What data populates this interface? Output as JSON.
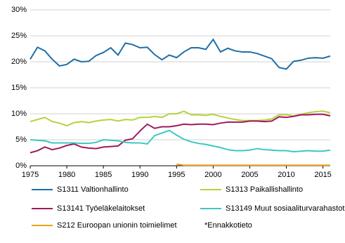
{
  "chart_data": {
    "type": "line",
    "x": [
      1975,
      1976,
      1977,
      1978,
      1979,
      1980,
      1981,
      1982,
      1983,
      1984,
      1985,
      1986,
      1987,
      1988,
      1989,
      1990,
      1991,
      1992,
      1993,
      1994,
      1995,
      1996,
      1997,
      1998,
      1999,
      2000,
      2001,
      2002,
      2003,
      2004,
      2005,
      2006,
      2007,
      2008,
      2009,
      2010,
      2011,
      2012,
      2013,
      2014,
      2015,
      2016
    ],
    "xlim": [
      1975,
      2016
    ],
    "xticks": [
      1975,
      1980,
      1985,
      1990,
      1995,
      2000,
      2005,
      2010,
      2015
    ],
    "ylim": [
      0,
      30
    ],
    "yticks": [
      {
        "value": 0,
        "label": "0%"
      },
      {
        "value": 5,
        "label": "5%"
      },
      {
        "value": 10,
        "label": "10%"
      },
      {
        "value": 15,
        "label": "15%"
      },
      {
        "value": 20,
        "label": "20%"
      },
      {
        "value": 25,
        "label": "25%"
      },
      {
        "value": 30,
        "label": "30%"
      }
    ],
    "grid": true,
    "note": "*Ennakkotieto",
    "series": [
      {
        "name": "S1311 Valtionhallinto",
        "color": "#1f6fa8",
        "values": [
          20.5,
          22.8,
          22.1,
          20.5,
          19.2,
          19.5,
          20.5,
          20.0,
          20.1,
          21.2,
          21.8,
          22.7,
          21.3,
          23.6,
          23.3,
          22.7,
          22.8,
          21.4,
          20.4,
          21.3,
          20.8,
          21.9,
          22.7,
          22.7,
          22.4,
          24.3,
          21.9,
          22.6,
          22.1,
          21.9,
          21.9,
          21.6,
          21.1,
          20.6,
          18.9,
          18.6,
          20.1,
          20.3,
          20.7,
          20.8,
          20.7,
          21.1
        ]
      },
      {
        "name": "S1313 Paikallishallinto",
        "color": "#b5d33d",
        "values": [
          8.5,
          8.9,
          9.3,
          8.5,
          8.2,
          7.7,
          8.3,
          8.5,
          8.3,
          8.6,
          8.8,
          8.9,
          8.6,
          8.9,
          8.8,
          9.3,
          9.3,
          9.5,
          9.3,
          10.0,
          10.0,
          10.5,
          9.8,
          9.8,
          9.7,
          9.9,
          9.5,
          9.2,
          8.9,
          8.7,
          8.7,
          8.7,
          8.8,
          9.0,
          9.8,
          9.8,
          9.6,
          9.9,
          10.2,
          10.4,
          10.5,
          10.2
        ]
      },
      {
        "name": "S13141 Työeläkelaitokset",
        "color": "#a0195f",
        "values": [
          2.5,
          2.9,
          3.6,
          3.1,
          3.4,
          3.9,
          4.2,
          3.6,
          3.4,
          3.3,
          3.6,
          3.7,
          3.8,
          4.9,
          5.2,
          6.7,
          8.0,
          7.2,
          7.5,
          7.5,
          7.7,
          8.0,
          7.9,
          8.0,
          8.0,
          7.9,
          8.2,
          8.4,
          8.4,
          8.4,
          8.6,
          8.6,
          8.5,
          8.6,
          9.4,
          9.3,
          9.5,
          9.8,
          9.8,
          9.9,
          9.9,
          9.6
        ]
      },
      {
        "name": "S13149 Muut sosiaaliturvarahastot",
        "color": "#3cc8c0",
        "values": [
          5.0,
          4.9,
          4.8,
          4.4,
          4.4,
          4.4,
          4.4,
          4.3,
          4.3,
          4.5,
          5.0,
          4.9,
          4.8,
          4.5,
          4.4,
          4.4,
          4.2,
          5.8,
          6.3,
          6.8,
          5.9,
          5.1,
          4.6,
          4.3,
          4.1,
          3.8,
          3.5,
          3.1,
          2.9,
          2.9,
          3.0,
          3.3,
          3.1,
          3.0,
          2.9,
          2.9,
          2.7,
          2.8,
          2.9,
          2.8,
          2.8,
          3.0
        ]
      },
      {
        "name": "S212 Euroopan unionin toimielimet",
        "color": "#e8a21a",
        "values": [
          null,
          null,
          null,
          null,
          null,
          null,
          null,
          null,
          null,
          null,
          null,
          null,
          null,
          null,
          null,
          null,
          null,
          null,
          null,
          null,
          0.3,
          0.1,
          0.1,
          0.1,
          0.1,
          0.1,
          0.1,
          0.1,
          0.1,
          0.1,
          0.1,
          0.1,
          0.1,
          0.1,
          0.1,
          0.1,
          0.1,
          0.1,
          0.1,
          0.1,
          0.1,
          0.1
        ]
      }
    ]
  }
}
